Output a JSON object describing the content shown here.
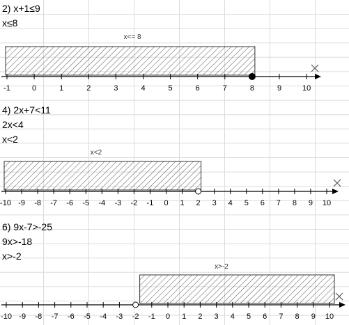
{
  "problems": [
    {
      "lines": [
        "2)  x+1≤9",
        "x≤8"
      ],
      "region_label": "x<= 8",
      "ticks": [
        -1,
        0,
        1,
        2,
        3,
        4,
        5,
        6,
        7,
        8,
        9,
        10
      ],
      "boundary": 8,
      "closed": true,
      "shade": "left"
    },
    {
      "lines": [
        "4)  2x+7<11",
        "2x<4",
        "x<2"
      ],
      "region_label": "x<2",
      "ticks": [
        -10,
        -9,
        -8,
        -7,
        -6,
        -5,
        -4,
        -3,
        -2,
        -1,
        0,
        1,
        2,
        3,
        4,
        5,
        6,
        7,
        8,
        9,
        10
      ],
      "boundary": 2,
      "closed": false,
      "shade": "left"
    },
    {
      "lines": [
        "6)  9x-7>-25",
        "9x>-18",
        "x>-2"
      ],
      "region_label": "x>-2",
      "ticks": [
        -10,
        -9,
        -8,
        -7,
        -6,
        -5,
        -4,
        -3,
        -2,
        -1,
        0,
        1,
        2,
        3,
        4,
        5,
        6,
        7,
        8,
        9,
        10
      ],
      "boundary": -2,
      "closed": false,
      "shade": "right"
    }
  ]
}
